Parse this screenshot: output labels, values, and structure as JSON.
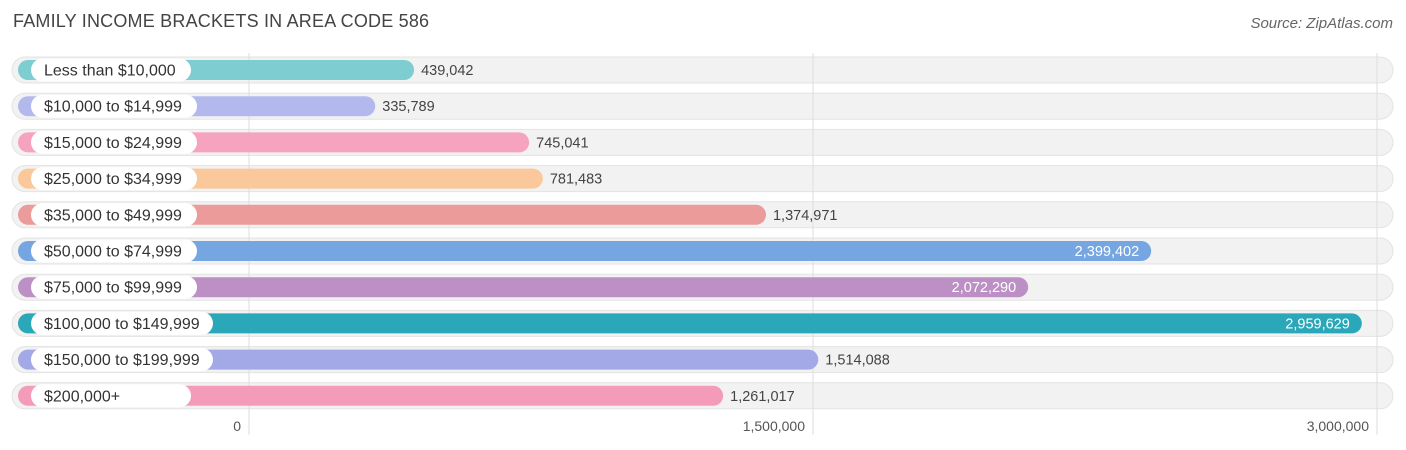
{
  "chart_data": {
    "type": "bar",
    "orientation": "horizontal",
    "title": "FAMILY INCOME BRACKETS IN AREA CODE 586",
    "source": "Source: ZipAtlas.com",
    "categories": [
      "Less than $10,000",
      "$10,000 to $14,999",
      "$15,000 to $24,999",
      "$25,000 to $34,999",
      "$35,000 to $49,999",
      "$50,000 to $74,999",
      "$75,000 to $99,999",
      "$100,000 to $149,999",
      "$150,000 to $199,999",
      "$200,000+"
    ],
    "values": [
      439042,
      335789,
      745041,
      781483,
      1374971,
      2399402,
      2072290,
      2959629,
      1514088,
      1261017
    ],
    "value_labels": [
      "439,042",
      "335,789",
      "745,041",
      "781,483",
      "1,374,971",
      "2,399,402",
      "2,072,290",
      "2,959,629",
      "1,514,088",
      "1,261,017"
    ],
    "colors": [
      "#7dcdd1",
      "#b3b9ec",
      "#f5a3bf",
      "#fac89b",
      "#eb9b9a",
      "#76a6e1",
      "#bc90c5",
      "#2aa7b8",
      "#a3a8e6",
      "#f59bba"
    ],
    "xlim": [
      0,
      3000000
    ],
    "ticks": [
      0,
      1500000,
      3000000
    ],
    "tick_labels": [
      "0",
      "1,500,000",
      "3,000,000"
    ],
    "grid": true,
    "xlabel": "",
    "ylabel": ""
  }
}
